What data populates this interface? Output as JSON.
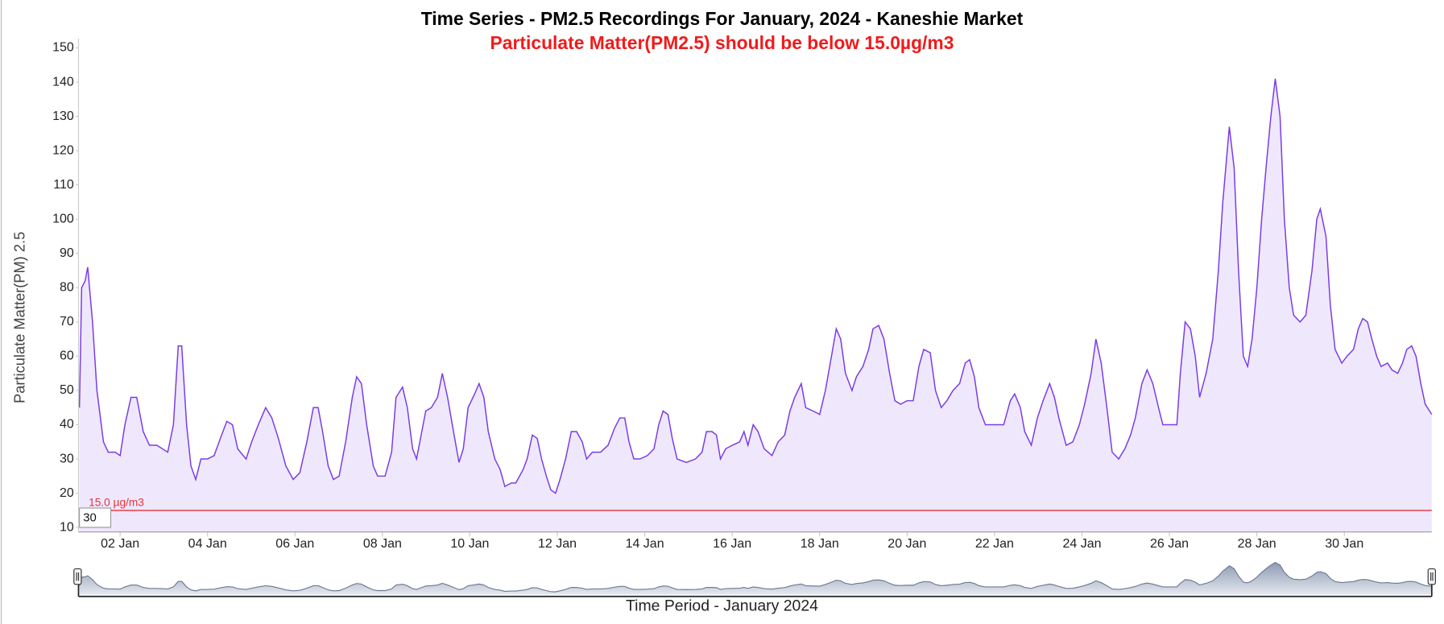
{
  "chart_data": {
    "type": "area",
    "title": "Time Series - PM2.5 Recordings For January, 2024 - Kaneshie Market",
    "subtitle": "Particulate Matter(PM2.5) should be below 15.0µg/m3",
    "y_label": "Particulate Matter(PM) 2.5",
    "x_label": "Time Period - January 2024",
    "range_input": "30",
    "threshold": {
      "value": 15,
      "label": "15.0 µg/m3",
      "color": "#e8313b"
    },
    "color": "#7a3ce6",
    "fill": "#efe8fd",
    "navigator": true,
    "xlim": [
      1.07,
      32.0
    ],
    "ylim": [
      8.7,
      152.7
    ],
    "yticks": [
      10,
      20,
      30,
      40,
      50,
      60,
      70,
      80,
      90,
      100,
      110,
      120,
      130,
      140,
      150
    ],
    "xticks": [
      {
        "value": 2,
        "label": "02 Jan"
      },
      {
        "value": 4,
        "label": "04 Jan"
      },
      {
        "value": 6,
        "label": "06 Jan"
      },
      {
        "value": 8,
        "label": "08 Jan"
      },
      {
        "value": 10,
        "label": "10 Jan"
      },
      {
        "value": 12,
        "label": "12 Jan"
      },
      {
        "value": 14,
        "label": "14 Jan"
      },
      {
        "value": 16,
        "label": "16 Jan"
      },
      {
        "value": 18,
        "label": "18 Jan"
      },
      {
        "value": 20,
        "label": "20 Jan"
      },
      {
        "value": 22,
        "label": "22 Jan"
      },
      {
        "value": 24,
        "label": "24 Jan"
      },
      {
        "value": 26,
        "label": "26 Jan"
      },
      {
        "value": 28,
        "label": "28 Jan"
      },
      {
        "value": 30,
        "label": "30 Jan"
      }
    ],
    "x": [
      1.07,
      1.12,
      1.2,
      1.26,
      1.37,
      1.47,
      1.62,
      1.73,
      1.89,
      2.0,
      2.11,
      2.25,
      2.38,
      2.53,
      2.67,
      2.84,
      3.09,
      3.22,
      3.33,
      3.41,
      3.52,
      3.62,
      3.73,
      3.85,
      4.0,
      4.15,
      4.32,
      4.44,
      4.57,
      4.69,
      4.88,
      5.01,
      5.16,
      5.33,
      5.47,
      5.62,
      5.79,
      5.96,
      6.11,
      6.27,
      6.42,
      6.53,
      6.63,
      6.76,
      6.88,
      7.01,
      7.16,
      7.31,
      7.41,
      7.52,
      7.64,
      7.79,
      7.89,
      8.06,
      8.21,
      8.31,
      8.46,
      8.57,
      8.69,
      8.78,
      8.9,
      8.99,
      9.12,
      9.26,
      9.37,
      9.49,
      9.64,
      9.75,
      9.85,
      9.96,
      10.11,
      10.21,
      10.32,
      10.42,
      10.57,
      10.69,
      10.8,
      10.95,
      11.05,
      11.22,
      11.31,
      11.43,
      11.54,
      11.64,
      11.75,
      11.85,
      11.96,
      12.06,
      12.19,
      12.32,
      12.44,
      12.57,
      12.67,
      12.8,
      12.99,
      13.16,
      13.31,
      13.43,
      13.54,
      13.64,
      13.75,
      13.89,
      14.06,
      14.21,
      14.32,
      14.42,
      14.53,
      14.63,
      14.74,
      14.95,
      15.16,
      15.31,
      15.41,
      15.54,
      15.64,
      15.73,
      15.85,
      16.0,
      16.17,
      16.27,
      16.36,
      16.48,
      16.59,
      16.73,
      16.91,
      17.05,
      17.2,
      17.32,
      17.43,
      17.58,
      17.68,
      17.85,
      18.0,
      18.13,
      18.27,
      18.38,
      18.48,
      18.59,
      18.74,
      18.84,
      18.99,
      19.12,
      19.22,
      19.35,
      19.47,
      19.6,
      19.72,
      19.85,
      20.0,
      20.14,
      20.27,
      20.38,
      20.53,
      20.65,
      20.78,
      20.91,
      21.05,
      21.2,
      21.33,
      21.43,
      21.54,
      21.64,
      21.79,
      21.96,
      22.21,
      22.36,
      22.46,
      22.59,
      22.69,
      22.84,
      22.98,
      23.11,
      23.26,
      23.37,
      23.47,
      23.64,
      23.79,
      23.94,
      24.06,
      24.21,
      24.32,
      24.44,
      24.57,
      24.69,
      24.84,
      24.98,
      25.11,
      25.22,
      25.37,
      25.49,
      25.62,
      25.75,
      25.85,
      26.0,
      26.17,
      26.25,
      26.36,
      26.48,
      26.59,
      26.69,
      26.84,
      26.99,
      27.12,
      27.22,
      27.37,
      27.48,
      27.58,
      27.69,
      27.79,
      27.89,
      28.0,
      28.11,
      28.21,
      28.32,
      28.42,
      28.53,
      28.63,
      28.74,
      28.84,
      28.99,
      29.12,
      29.26,
      29.37,
      29.45,
      29.58,
      29.68,
      29.79,
      29.94,
      30.06,
      30.21,
      30.32,
      30.42,
      30.53,
      30.63,
      30.74,
      30.84,
      30.99,
      31.09,
      31.22,
      31.33,
      31.43,
      31.54,
      31.64,
      31.75,
      31.85,
      32.0
    ],
    "values": [
      45,
      80,
      82,
      86,
      70,
      50,
      35,
      32,
      32,
      31,
      40,
      48,
      48,
      38,
      34,
      34,
      32,
      40,
      63,
      63,
      40,
      28,
      24,
      30,
      30,
      31,
      37,
      41,
      40,
      33,
      30,
      35,
      40,
      45,
      42,
      36,
      28,
      24,
      26,
      35,
      45,
      45,
      38,
      28,
      24,
      25,
      35,
      48,
      54,
      52,
      40,
      28,
      25,
      25,
      32,
      48,
      51,
      45,
      33,
      30,
      38,
      44,
      45,
      48,
      55,
      48,
      37,
      29,
      33,
      45,
      49,
      52,
      48,
      38,
      30,
      27,
      22,
      23,
      23,
      27,
      30,
      37,
      36,
      30,
      25,
      21,
      20,
      24,
      30,
      38,
      38,
      35,
      30,
      32,
      32,
      34,
      39,
      42,
      42,
      35,
      30,
      30,
      31,
      33,
      40,
      44,
      43,
      36,
      30,
      29,
      30,
      32,
      38,
      38,
      37,
      30,
      33,
      34,
      35,
      38,
      34,
      40,
      38,
      33,
      31,
      35,
      37,
      44,
      48,
      52,
      45,
      44,
      43,
      50,
      60,
      68,
      65,
      55,
      50,
      54,
      57,
      62,
      68,
      69,
      65,
      55,
      47,
      46,
      47,
      47,
      57,
      62,
      61,
      50,
      45,
      47,
      50,
      52,
      58,
      59,
      54,
      45,
      40,
      40,
      40,
      47,
      49,
      45,
      38,
      34,
      42,
      47,
      52,
      48,
      42,
      34,
      35,
      40,
      46,
      55,
      65,
      58,
      45,
      32,
      30,
      33,
      37,
      42,
      52,
      56,
      52,
      45,
      40,
      40,
      40,
      55,
      70,
      68,
      60,
      48,
      55,
      65,
      85,
      105,
      127,
      115,
      85,
      60,
      57,
      65,
      80,
      100,
      115,
      130,
      141,
      130,
      100,
      80,
      72,
      70,
      72,
      85,
      100,
      103,
      95,
      75,
      62,
      58,
      60,
      62,
      68,
      71,
      70,
      65,
      60,
      57,
      58,
      56,
      55,
      58,
      62,
      63,
      60,
      52,
      46,
      43
    ]
  }
}
